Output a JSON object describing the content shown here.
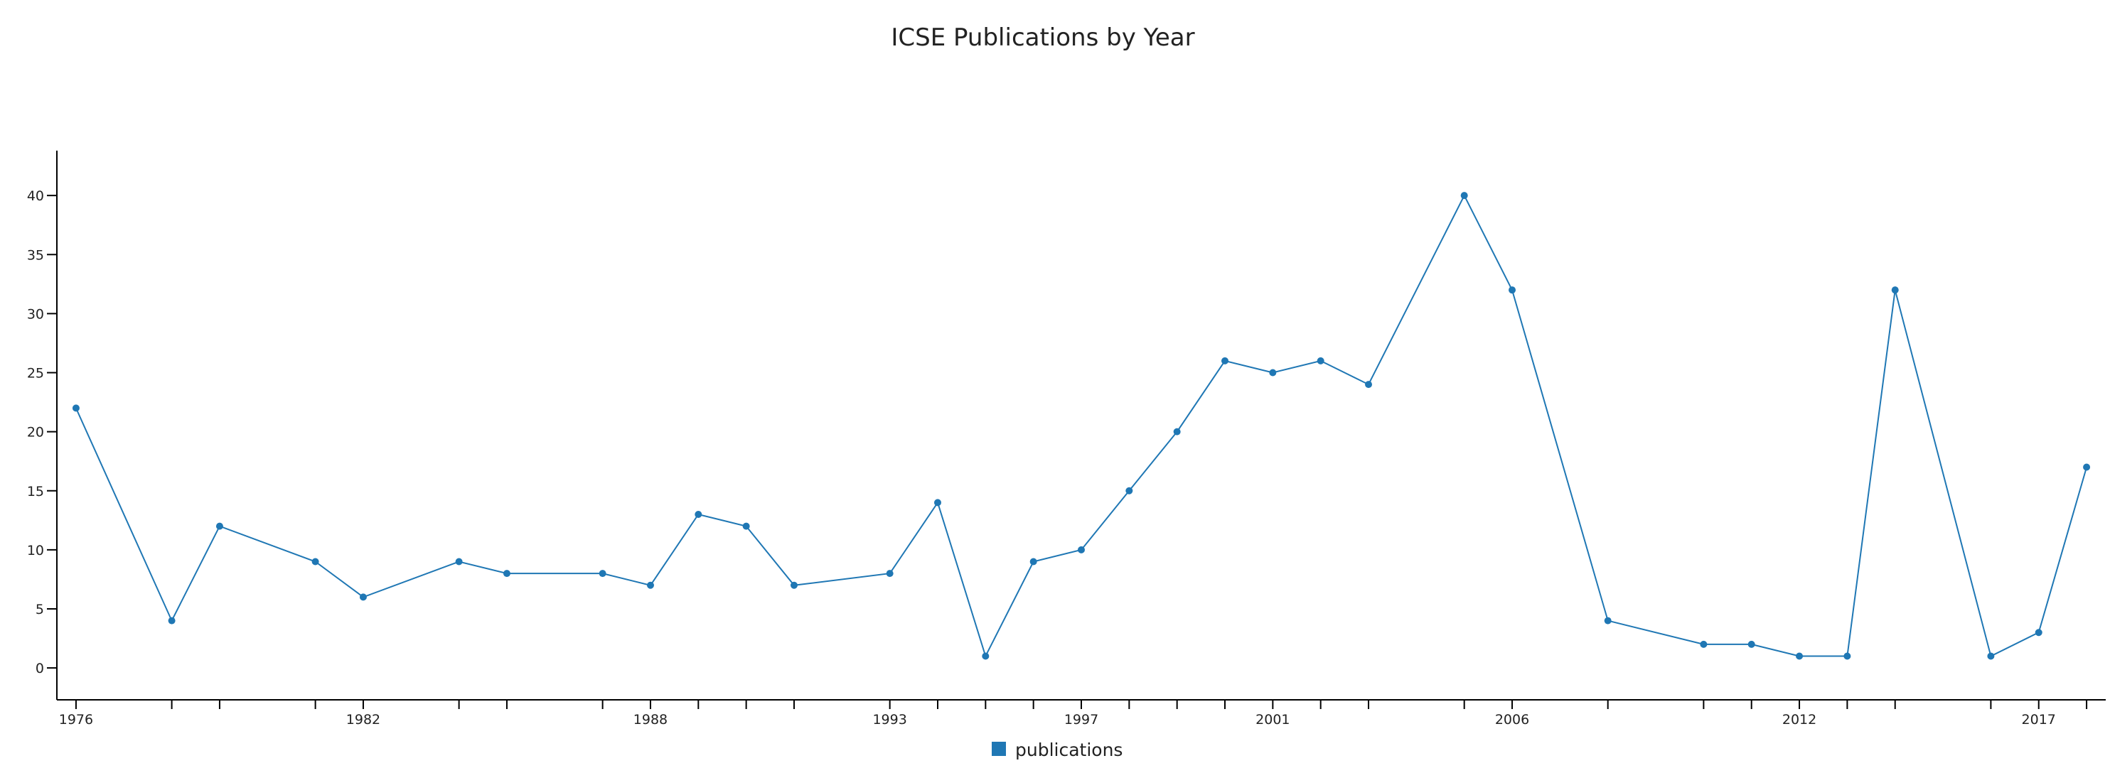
{
  "chart_data": {
    "type": "line",
    "title": "ICSE Publications by Year",
    "xlabel": "",
    "ylabel": "",
    "xlim": [
      1975.6,
      2018.4
    ],
    "ylim": [
      -2.7,
      43.8
    ],
    "y_ticks": [
      0,
      5,
      10,
      15,
      20,
      25,
      30,
      35,
      40
    ],
    "x_tick_labels": [
      1976,
      1982,
      1988,
      1993,
      1997,
      2001,
      2006,
      2012,
      2017
    ],
    "x_minor_ticks": [
      1978,
      1979,
      1981,
      1984,
      1985,
      1987,
      1989,
      1990,
      1991,
      1994,
      1995,
      1996,
      1998,
      1999,
      2000,
      2002,
      2003,
      2005,
      2008,
      2010,
      2011,
      2013,
      2014,
      2016,
      2018
    ],
    "grid": false,
    "legend": {
      "placement": "bottom-center"
    },
    "series": [
      {
        "name": "publications",
        "color": "#1f77b4",
        "points": [
          {
            "x": 1976,
            "y": 22
          },
          {
            "x": 1978,
            "y": 4
          },
          {
            "x": 1979,
            "y": 12
          },
          {
            "x": 1981,
            "y": 9
          },
          {
            "x": 1982,
            "y": 6
          },
          {
            "x": 1984,
            "y": 9
          },
          {
            "x": 1985,
            "y": 8
          },
          {
            "x": 1987,
            "y": 8
          },
          {
            "x": 1988,
            "y": 7
          },
          {
            "x": 1989,
            "y": 13
          },
          {
            "x": 1990,
            "y": 12
          },
          {
            "x": 1991,
            "y": 7
          },
          {
            "x": 1993,
            "y": 8
          },
          {
            "x": 1994,
            "y": 14
          },
          {
            "x": 1995,
            "y": 1
          },
          {
            "x": 1996,
            "y": 9
          },
          {
            "x": 1997,
            "y": 10
          },
          {
            "x": 1998,
            "y": 15
          },
          {
            "x": 1999,
            "y": 20
          },
          {
            "x": 2000,
            "y": 26
          },
          {
            "x": 2001,
            "y": 25
          },
          {
            "x": 2002,
            "y": 26
          },
          {
            "x": 2003,
            "y": 24
          },
          {
            "x": 2005,
            "y": 40
          },
          {
            "x": 2006,
            "y": 32
          },
          {
            "x": 2008,
            "y": 4
          },
          {
            "x": 2010,
            "y": 2
          },
          {
            "x": 2011,
            "y": 2
          },
          {
            "x": 2012,
            "y": 1
          },
          {
            "x": 2013,
            "y": 1
          },
          {
            "x": 2014,
            "y": 32
          },
          {
            "x": 2016,
            "y": 1
          },
          {
            "x": 2017,
            "y": 3
          },
          {
            "x": 2018,
            "y": 17
          }
        ]
      }
    ]
  }
}
